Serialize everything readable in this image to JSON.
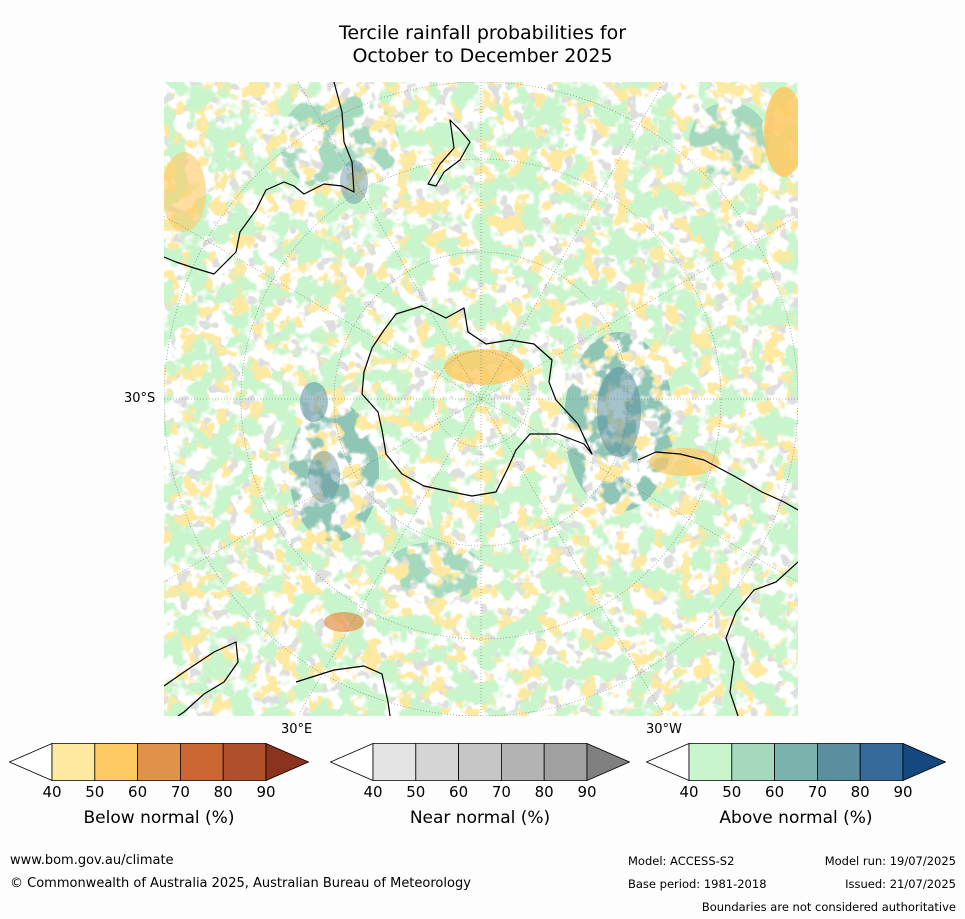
{
  "title_line1": "Tercile rainfall probabilities for",
  "title_line2": "October to December 2025",
  "map": {
    "projection": "south polar stereographic",
    "lat_label": "30°S",
    "lon_label_east": "30°E",
    "lon_label_west": "30°W",
    "ocean_color": "#ffffff",
    "coast_color": "#000000"
  },
  "colorbars": [
    {
      "title": "Below normal (%)",
      "ticks": [
        "40",
        "50",
        "60",
        "70",
        "80",
        "90"
      ],
      "colors": [
        "#ffffff",
        "#fde9a0",
        "#fdc962",
        "#e0924a",
        "#cc6633",
        "#b0502a",
        "#8c3320"
      ]
    },
    {
      "title": "Near normal (%)",
      "ticks": [
        "40",
        "50",
        "60",
        "70",
        "80",
        "90"
      ],
      "colors": [
        "#ffffff",
        "#e4e4e4",
        "#d5d5d5",
        "#c6c6c6",
        "#b3b3b3",
        "#a0a0a0",
        "#808080"
      ]
    },
    {
      "title": "Above normal (%)",
      "ticks": [
        "40",
        "50",
        "60",
        "70",
        "80",
        "90"
      ],
      "colors": [
        "#ffffff",
        "#c8f5cc",
        "#a4d9bd",
        "#7ab3ad",
        "#5a8fa0",
        "#356a9a",
        "#15487f"
      ]
    }
  ],
  "footer": {
    "website": "www.bom.gov.au/climate",
    "copyright": "© Commonwealth of Australia 2025, Australian Bureau of Meteorology",
    "model": "Model: ACCESS-S2",
    "base_period": "Base period: 1981-2018",
    "model_run": "Model run: 19/07/2025",
    "issued": "Issued: 21/07/2025",
    "disclaimer": "Boundaries are not considered authoritative"
  }
}
